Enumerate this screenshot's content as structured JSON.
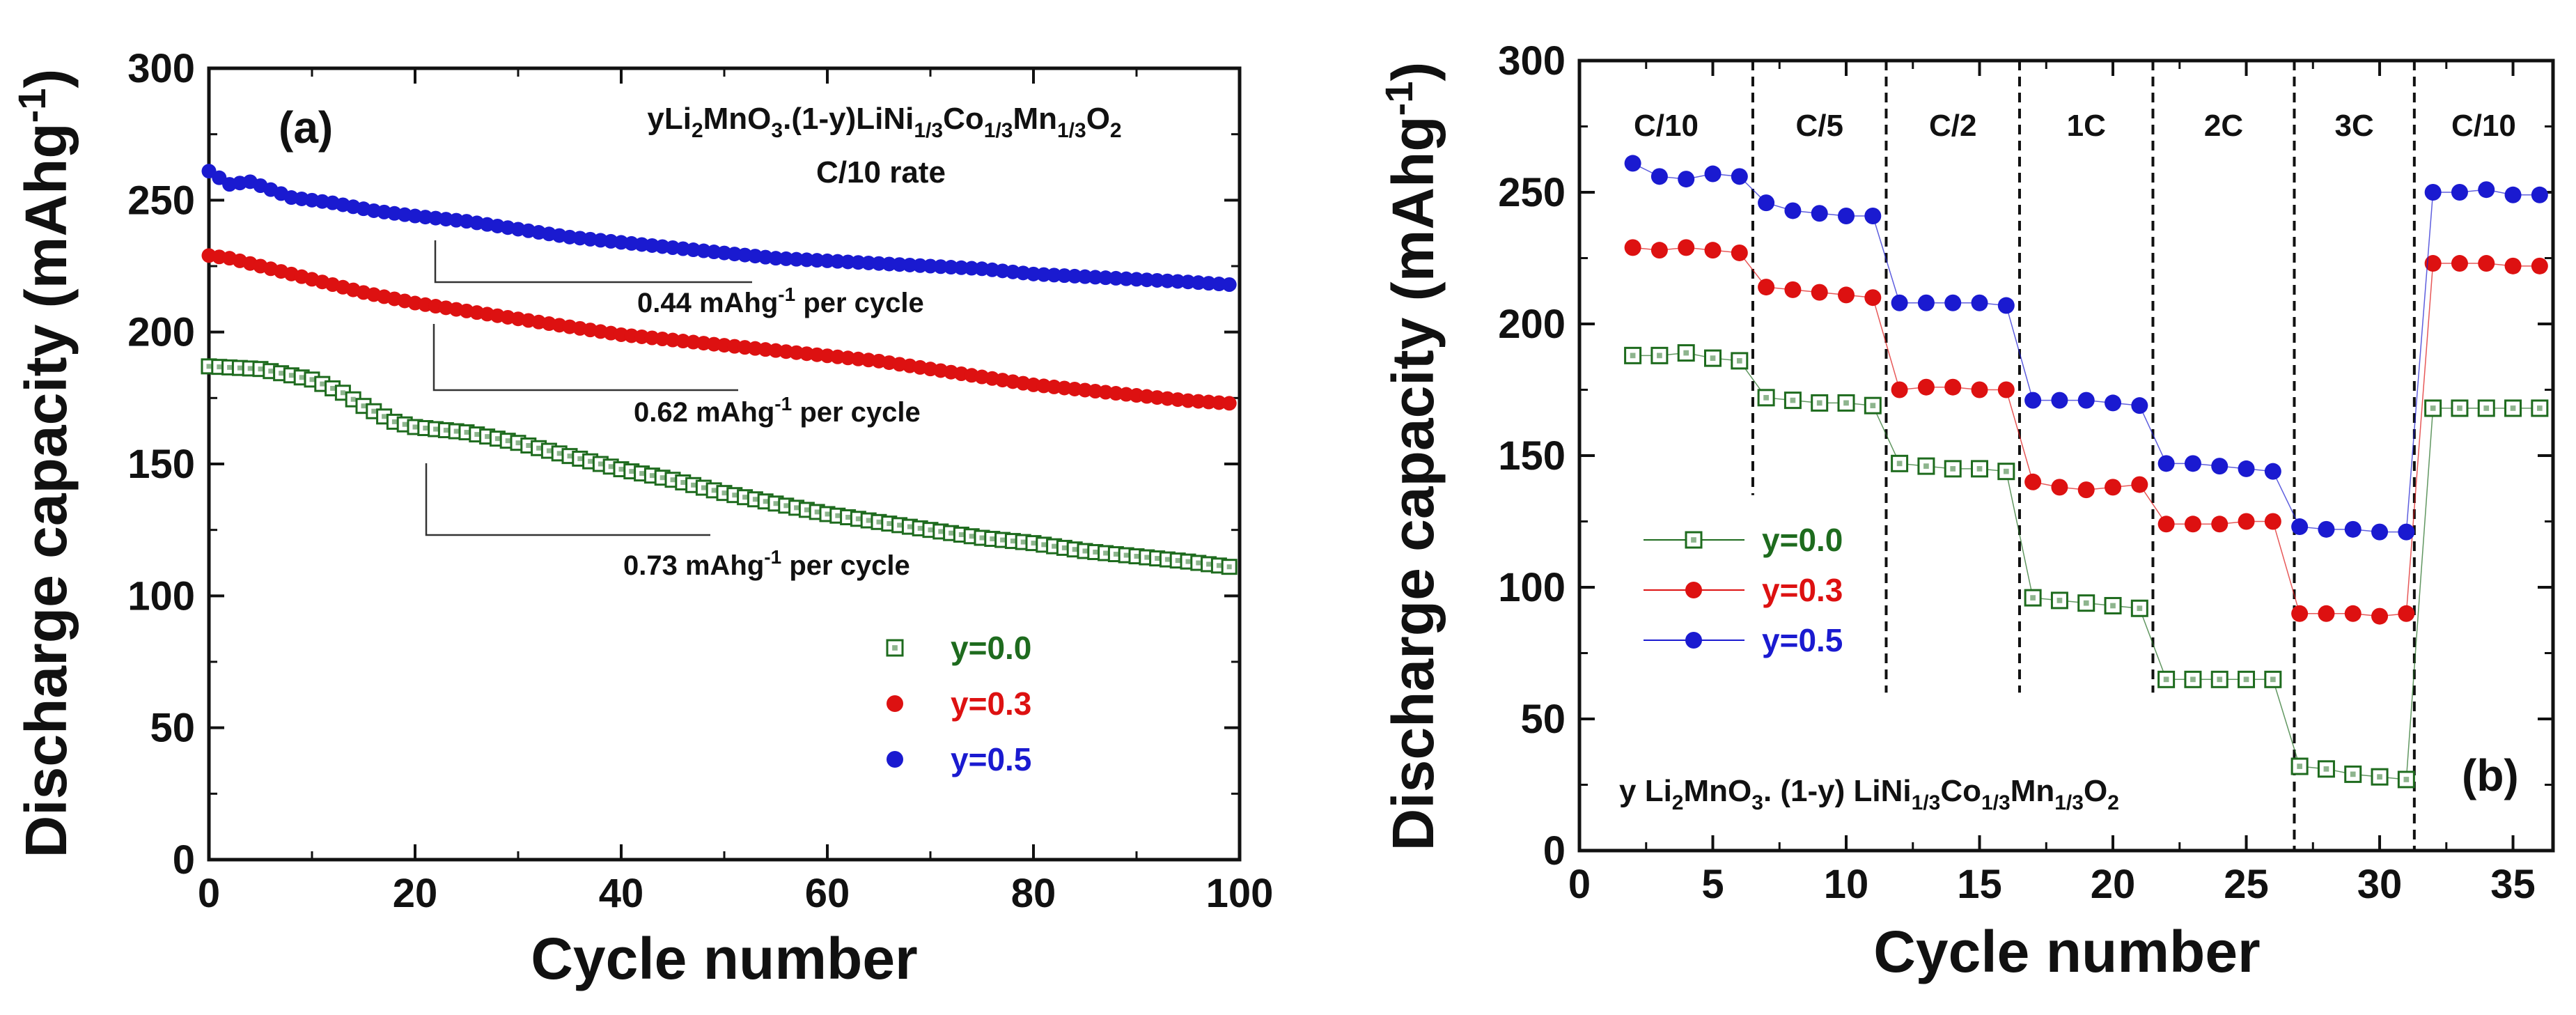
{
  "colors": {
    "y00": "#1e6b1e",
    "y03": "#dd1111",
    "y05": "#1a1ad0",
    "axis": "#111111"
  },
  "chart_data": [
    {
      "panel": "a",
      "type": "scatter",
      "panel_label": "(a)",
      "title_line1": "yLi2MnO3.(1-y)LiNi1/3Co1/3Mn1/3O2",
      "title_line2": "C/10 rate",
      "xlabel": "Cycle number",
      "ylabel": "Discharge capacity (mAhg-1)",
      "xlim": [
        0,
        100
      ],
      "ylim": [
        0,
        300
      ],
      "xticks": [
        0,
        20,
        40,
        60,
        80,
        100
      ],
      "yticks": [
        0,
        50,
        100,
        150,
        200,
        250,
        300
      ],
      "series": [
        {
          "name": "y=0.0",
          "marker": "open-square",
          "x": [
            0,
            5,
            10,
            13,
            15,
            18,
            20,
            25,
            30,
            35,
            40,
            45,
            50,
            55,
            60,
            65,
            70,
            75,
            80,
            85,
            90,
            95,
            99
          ],
          "y": [
            187,
            186,
            182,
            177,
            172,
            166,
            164,
            162,
            158,
            153,
            148,
            144,
            139,
            135,
            131,
            128,
            125,
            122,
            120,
            117,
            115,
            113,
            111
          ]
        },
        {
          "name": "y=0.3",
          "marker": "filled-circle",
          "x": [
            0,
            2,
            5,
            10,
            15,
            20,
            25,
            30,
            35,
            40,
            45,
            50,
            55,
            60,
            65,
            70,
            75,
            80,
            85,
            90,
            95,
            99
          ],
          "y": [
            229,
            228,
            225,
            220,
            215,
            211,
            208,
            205,
            202,
            199,
            197,
            195,
            193,
            191,
            189,
            186,
            183,
            180,
            178,
            176,
            174,
            173
          ]
        },
        {
          "name": "y=0.5",
          "marker": "filled-circle",
          "x": [
            0,
            2,
            4,
            8,
            12,
            16,
            20,
            25,
            30,
            35,
            40,
            45,
            50,
            55,
            60,
            65,
            70,
            75,
            80,
            85,
            90,
            95,
            99
          ],
          "y": [
            261,
            256,
            257,
            251,
            249,
            246,
            244,
            242,
            239,
            236,
            234,
            232,
            230,
            228,
            227,
            226,
            225,
            224,
            222,
            221,
            220,
            219,
            218
          ]
        }
      ],
      "annotations": [
        {
          "text": "0.44 mAhg-1 per cycle",
          "value": 0.44
        },
        {
          "text": "0.62 mAhg-1 per cycle",
          "value": 0.62
        },
        {
          "text": "0.73 mAhg-1 per cycle",
          "value": 0.73
        }
      ]
    },
    {
      "panel": "b",
      "type": "line",
      "panel_label": "(b)",
      "formula": "y Li2MnO3. (1-y) LiNi1/3Co1/3Mn1/3O2",
      "xlabel": "Cycle number",
      "ylabel": "Discharge capacity (mAhg-1)",
      "xlim": [
        0,
        36.5
      ],
      "ylim": [
        0,
        300
      ],
      "xticks": [
        0,
        5,
        10,
        15,
        20,
        25,
        30,
        35
      ],
      "yticks": [
        0,
        50,
        100,
        150,
        200,
        250,
        300
      ],
      "rate_labels": [
        "C/10",
        "C/5",
        "C/2",
        "1C",
        "2C",
        "3C",
        "C/10"
      ],
      "rate_boundaries": [
        6.5,
        11.5,
        16.5,
        21.5,
        26.8,
        31.3
      ],
      "series": [
        {
          "name": "y=0.0",
          "marker": "open-square",
          "x": [
            2,
            3,
            4,
            5,
            6,
            7,
            8,
            9,
            10,
            11,
            12,
            13,
            14,
            15,
            16,
            17,
            18,
            19,
            20,
            21,
            22,
            23,
            24,
            25,
            26,
            27,
            28,
            29,
            30,
            31,
            32,
            33,
            34,
            35,
            36
          ],
          "y": [
            188,
            188,
            189,
            187,
            186,
            172,
            171,
            170,
            170,
            169,
            147,
            146,
            145,
            145,
            144,
            96,
            95,
            94,
            93,
            92,
            65,
            65,
            65,
            65,
            65,
            32,
            31,
            29,
            28,
            27,
            168,
            168,
            168,
            168,
            168
          ]
        },
        {
          "name": "y=0.3",
          "marker": "filled-circle",
          "x": [
            2,
            3,
            4,
            5,
            6,
            7,
            8,
            9,
            10,
            11,
            12,
            13,
            14,
            15,
            16,
            17,
            18,
            19,
            20,
            21,
            22,
            23,
            24,
            25,
            26,
            27,
            28,
            29,
            30,
            31,
            32,
            33,
            34,
            35,
            36
          ],
          "y": [
            229,
            228,
            229,
            228,
            227,
            214,
            213,
            212,
            211,
            210,
            175,
            176,
            176,
            175,
            175,
            140,
            138,
            137,
            138,
            139,
            124,
            124,
            124,
            125,
            125,
            90,
            90,
            90,
            89,
            90,
            223,
            223,
            223,
            222,
            222
          ]
        },
        {
          "name": "y=0.5",
          "marker": "filled-circle",
          "x": [
            2,
            3,
            4,
            5,
            6,
            7,
            8,
            9,
            10,
            11,
            12,
            13,
            14,
            15,
            16,
            17,
            18,
            19,
            20,
            21,
            22,
            23,
            24,
            25,
            26,
            27,
            28,
            29,
            30,
            31,
            32,
            33,
            34,
            35,
            36
          ],
          "y": [
            261,
            256,
            255,
            257,
            256,
            246,
            243,
            242,
            241,
            241,
            208,
            208,
            208,
            208,
            207,
            171,
            171,
            171,
            170,
            169,
            147,
            147,
            146,
            145,
            144,
            123,
            122,
            122,
            121,
            121,
            250,
            250,
            251,
            249,
            249
          ]
        }
      ]
    }
  ]
}
